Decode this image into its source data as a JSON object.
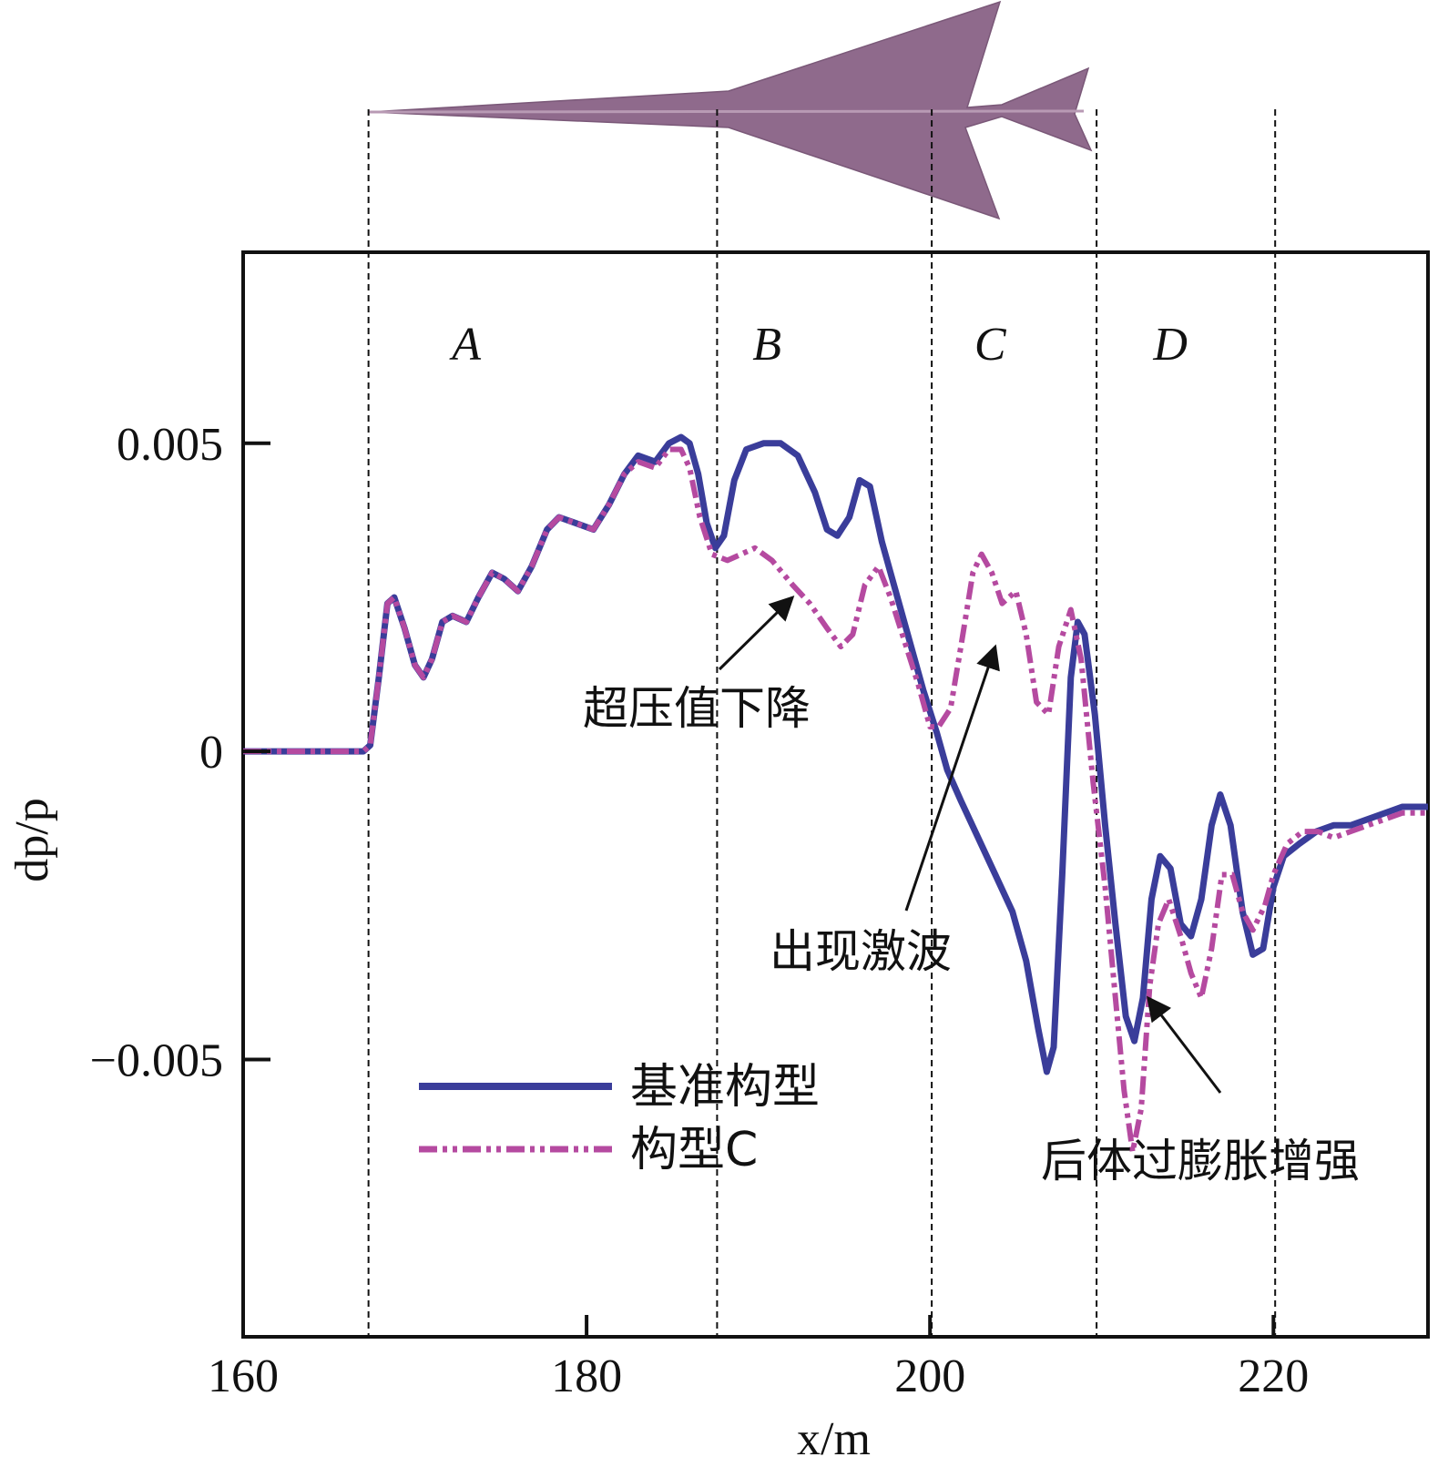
{
  "chart_data": {
    "type": "line",
    "xlabel": "x/m",
    "ylabel": "dp/p",
    "xlim": [
      160,
      229
    ],
    "ylim": [
      -0.0095,
      0.0081
    ],
    "x_ticks": [
      "160",
      "180",
      "200",
      "220"
    ],
    "y_ticks": [
      "−0.005",
      "0",
      "0.005"
    ],
    "y_tick_values": [
      -0.005,
      0,
      0.005
    ],
    "x_tick_values": [
      160,
      180,
      200,
      220
    ],
    "region_boundaries": [
      167.3,
      187.6,
      200.1,
      209.7,
      220.1
    ],
    "regions": [
      {
        "label": "A",
        "x": 173
      },
      {
        "label": "B",
        "x": 190.5
      },
      {
        "label": "C",
        "x": 203.5
      },
      {
        "label": "D",
        "x": 214
      }
    ],
    "annotations": [
      {
        "text": "超压值下降",
        "target": [
          192,
          0.0025
        ]
      },
      {
        "text": "出现激波",
        "target": [
          203.8,
          0.0017
        ]
      },
      {
        "text": "后体过膨胀增强",
        "target": [
          212.7,
          -0.004
        ]
      }
    ],
    "legend": {
      "placement": "lower-left"
    },
    "series": [
      {
        "name": "基准构型",
        "color": "#3a3d9a",
        "style": "solid",
        "points": [
          [
            160,
            0
          ],
          [
            165,
            0
          ],
          [
            167,
            0
          ],
          [
            167.4,
            0.0001
          ],
          [
            167.9,
            0.0012
          ],
          [
            168.4,
            0.0024
          ],
          [
            168.8,
            0.0025
          ],
          [
            169.4,
            0.002
          ],
          [
            170.0,
            0.0014
          ],
          [
            170.5,
            0.0012
          ],
          [
            171.0,
            0.0015
          ],
          [
            171.6,
            0.0021
          ],
          [
            172.2,
            0.0022
          ],
          [
            173.0,
            0.0021
          ],
          [
            173.7,
            0.0025
          ],
          [
            174.5,
            0.0029
          ],
          [
            175.2,
            0.0028
          ],
          [
            176.0,
            0.0026
          ],
          [
            176.8,
            0.003
          ],
          [
            177.7,
            0.0036
          ],
          [
            178.4,
            0.0038
          ],
          [
            179.4,
            0.0037
          ],
          [
            180.4,
            0.0036
          ],
          [
            181.3,
            0.004
          ],
          [
            182.2,
            0.0045
          ],
          [
            183.0,
            0.0048
          ],
          [
            184.0,
            0.0047
          ],
          [
            184.8,
            0.005
          ],
          [
            185.5,
            0.0051
          ],
          [
            186.0,
            0.005
          ],
          [
            186.5,
            0.0045
          ],
          [
            187.0,
            0.0037
          ],
          [
            187.5,
            0.0033
          ],
          [
            188.0,
            0.0035
          ],
          [
            188.6,
            0.0044
          ],
          [
            189.3,
            0.0049
          ],
          [
            190.3,
            0.005
          ],
          [
            191.3,
            0.005
          ],
          [
            192.3,
            0.0048
          ],
          [
            193.3,
            0.0042
          ],
          [
            194.0,
            0.0036
          ],
          [
            194.6,
            0.0035
          ],
          [
            195.3,
            0.0038
          ],
          [
            195.9,
            0.0044
          ],
          [
            196.5,
            0.0043
          ],
          [
            197.2,
            0.0034
          ],
          [
            198.0,
            0.0026
          ],
          [
            198.8,
            0.0018
          ],
          [
            199.6,
            0.001
          ],
          [
            200.4,
            0.0003
          ],
          [
            201.0,
            -0.0003
          ],
          [
            201.8,
            -0.0008
          ],
          [
            202.8,
            -0.0014
          ],
          [
            203.8,
            -0.002
          ],
          [
            204.8,
            -0.0026
          ],
          [
            205.6,
            -0.0034
          ],
          [
            206.3,
            -0.0045
          ],
          [
            206.8,
            -0.0052
          ],
          [
            207.2,
            -0.0048
          ],
          [
            207.7,
            -0.002
          ],
          [
            208.2,
            0.0012
          ],
          [
            208.6,
            0.0021
          ],
          [
            209.0,
            0.0019
          ],
          [
            209.6,
            0.0006
          ],
          [
            210.2,
            -0.0012
          ],
          [
            210.8,
            -0.0028
          ],
          [
            211.4,
            -0.0043
          ],
          [
            211.9,
            -0.0047
          ],
          [
            212.4,
            -0.004
          ],
          [
            212.9,
            -0.0024
          ],
          [
            213.4,
            -0.0017
          ],
          [
            214.0,
            -0.0019
          ],
          [
            214.6,
            -0.0028
          ],
          [
            215.2,
            -0.003
          ],
          [
            215.8,
            -0.0024
          ],
          [
            216.4,
            -0.0012
          ],
          [
            216.9,
            -0.0007
          ],
          [
            217.5,
            -0.0012
          ],
          [
            218.2,
            -0.0026
          ],
          [
            218.8,
            -0.0033
          ],
          [
            219.4,
            -0.0032
          ],
          [
            220.0,
            -0.0022
          ],
          [
            220.6,
            -0.0017
          ],
          [
            221.5,
            -0.0015
          ],
          [
            222.5,
            -0.0013
          ],
          [
            223.5,
            -0.0012
          ],
          [
            224.5,
            -0.0012
          ],
          [
            225.5,
            -0.0011
          ],
          [
            226.5,
            -0.001
          ],
          [
            227.5,
            -0.0009
          ],
          [
            229,
            -0.0009
          ]
        ]
      },
      {
        "name": "构型C",
        "color": "#b54aa0",
        "style": "dash-dot-dot",
        "points": [
          [
            160,
            0
          ],
          [
            165,
            0
          ],
          [
            167,
            0
          ],
          [
            167.4,
            0.0001
          ],
          [
            167.9,
            0.0012
          ],
          [
            168.4,
            0.0024
          ],
          [
            168.8,
            0.0025
          ],
          [
            169.4,
            0.002
          ],
          [
            170.0,
            0.0014
          ],
          [
            170.5,
            0.0012
          ],
          [
            171.0,
            0.0015
          ],
          [
            171.6,
            0.0021
          ],
          [
            172.2,
            0.0022
          ],
          [
            173.0,
            0.0021
          ],
          [
            173.7,
            0.0025
          ],
          [
            174.5,
            0.0029
          ],
          [
            175.2,
            0.0028
          ],
          [
            176.0,
            0.0026
          ],
          [
            176.8,
            0.003
          ],
          [
            177.7,
            0.0036
          ],
          [
            178.4,
            0.0038
          ],
          [
            179.4,
            0.0037
          ],
          [
            180.4,
            0.0036
          ],
          [
            181.3,
            0.004
          ],
          [
            182.2,
            0.0045
          ],
          [
            183.0,
            0.0047
          ],
          [
            184.0,
            0.0046
          ],
          [
            184.8,
            0.0049
          ],
          [
            185.5,
            0.0049
          ],
          [
            186.0,
            0.0046
          ],
          [
            186.6,
            0.0038
          ],
          [
            187.3,
            0.0032
          ],
          [
            188.2,
            0.0031
          ],
          [
            189.0,
            0.0032
          ],
          [
            189.8,
            0.0033
          ],
          [
            190.8,
            0.0031
          ],
          [
            192.0,
            0.0027
          ],
          [
            193.0,
            0.0024
          ],
          [
            194.0,
            0.002
          ],
          [
            194.8,
            0.0017
          ],
          [
            195.5,
            0.0019
          ],
          [
            196.2,
            0.0027
          ],
          [
            197.0,
            0.003
          ],
          [
            197.7,
            0.0025
          ],
          [
            198.5,
            0.0018
          ],
          [
            199.3,
            0.0011
          ],
          [
            200.0,
            0.0004
          ],
          [
            200.5,
            0.0004
          ],
          [
            201.2,
            0.0007
          ],
          [
            201.8,
            0.0017
          ],
          [
            202.5,
            0.0029
          ],
          [
            203.0,
            0.0032
          ],
          [
            203.6,
            0.0029
          ],
          [
            204.2,
            0.0024
          ],
          [
            205.0,
            0.0026
          ],
          [
            205.6,
            0.0019
          ],
          [
            206.2,
            0.0008
          ],
          [
            206.9,
            0.0006
          ],
          [
            207.5,
            0.0017
          ],
          [
            208.2,
            0.0023
          ],
          [
            208.8,
            0.0015
          ],
          [
            209.5,
            -0.0005
          ],
          [
            210.2,
            -0.0022
          ],
          [
            210.8,
            -0.004
          ],
          [
            211.3,
            -0.0055
          ],
          [
            211.8,
            -0.0065
          ],
          [
            212.3,
            -0.0058
          ],
          [
            212.8,
            -0.0038
          ],
          [
            213.3,
            -0.0028
          ],
          [
            213.9,
            -0.0024
          ],
          [
            214.6,
            -0.003
          ],
          [
            215.2,
            -0.0036
          ],
          [
            215.8,
            -0.004
          ],
          [
            216.4,
            -0.0032
          ],
          [
            217.0,
            -0.002
          ],
          [
            217.6,
            -0.002
          ],
          [
            218.2,
            -0.0026
          ],
          [
            218.8,
            -0.0029
          ],
          [
            219.5,
            -0.0025
          ],
          [
            220.0,
            -0.002
          ],
          [
            220.8,
            -0.0015
          ],
          [
            221.7,
            -0.0013
          ],
          [
            222.6,
            -0.0013
          ],
          [
            223.5,
            -0.0014
          ],
          [
            224.5,
            -0.0013
          ],
          [
            225.5,
            -0.0012
          ],
          [
            226.5,
            -0.0011
          ],
          [
            227.5,
            -0.001
          ],
          [
            229,
            -0.001
          ]
        ]
      }
    ]
  }
}
